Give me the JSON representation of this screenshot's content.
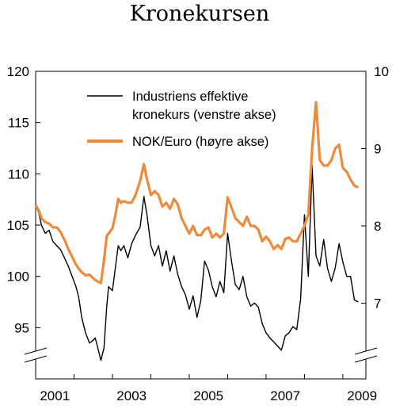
{
  "chart_data": {
    "type": "line",
    "title": "Kronekursen",
    "legend_position": "top-right",
    "grid": false,
    "x_range": [
      2001,
      2009.6
    ],
    "x_ticks": [
      "2001",
      "2003",
      "2005",
      "2007",
      "2009"
    ],
    "y_left": {
      "range": [
        90,
        120
      ],
      "ticks": [
        "95",
        "100",
        "105",
        "110",
        "115",
        "120"
      ],
      "axis_break": true
    },
    "y_right": {
      "range": [
        6.02,
        10
      ],
      "ticks": [
        "7",
        "8",
        "9",
        "10"
      ],
      "axis_break": true
    },
    "series": [
      {
        "name": "Industriens effektive",
        "name_line2": "kronekurs (venstre akse)",
        "axis": "left",
        "color": "#000000",
        "x": [
          2001.0,
          2001.08,
          2001.15,
          2001.25,
          2001.35,
          2001.45,
          2001.55,
          2001.65,
          2001.75,
          2001.85,
          2001.95,
          2002.05,
          2002.12,
          2002.2,
          2002.3,
          2002.4,
          2002.48,
          2002.55,
          2002.62,
          2002.7,
          2002.78,
          2002.85,
          2002.9,
          2003.0,
          2003.08,
          2003.15,
          2003.22,
          2003.3,
          2003.4,
          2003.5,
          2003.6,
          2003.72,
          2003.82,
          2003.9,
          2004.0,
          2004.1,
          2004.2,
          2004.3,
          2004.4,
          2004.5,
          2004.6,
          2004.7,
          2004.8,
          2004.9,
          2005.0,
          2005.1,
          2005.2,
          2005.3,
          2005.4,
          2005.5,
          2005.6,
          2005.7,
          2005.8,
          2005.9,
          2006.0,
          2006.1,
          2006.2,
          2006.3,
          2006.4,
          2006.5,
          2006.6,
          2006.7,
          2006.8,
          2006.9,
          2007.0,
          2007.1,
          2007.2,
          2007.3,
          2007.4,
          2007.5,
          2007.6,
          2007.7,
          2007.8,
          2007.9,
          2008.0,
          2008.1,
          2008.2,
          2008.3,
          2008.4,
          2008.5,
          2008.6,
          2008.7,
          2008.8,
          2008.9,
          2009.0,
          2009.1,
          2009.2,
          2009.3,
          2009.4
        ],
        "y": [
          107,
          106.2,
          105,
          104.2,
          104.5,
          103.4,
          103,
          102.6,
          101.8,
          101,
          100,
          99,
          98,
          96,
          94.5,
          93.5,
          93.7,
          94,
          93,
          91.8,
          93,
          97,
          99,
          98.6,
          101,
          103,
          102.5,
          103,
          101.8,
          103.2,
          104,
          104.8,
          107.8,
          106,
          103,
          102,
          103,
          101,
          102.5,
          100.5,
          102,
          100.2,
          99,
          98.2,
          96.8,
          98.1,
          96,
          97.6,
          101.5,
          100.6,
          99,
          98,
          99.5,
          98.4,
          104.2,
          101.5,
          99.2,
          98.7,
          100,
          98,
          97.1,
          97.4,
          97,
          95.4,
          94.5,
          94,
          93.6,
          93.2,
          92.8,
          94.2,
          94.5,
          95.1,
          94.8,
          97.8,
          106,
          100,
          110.8,
          102,
          101,
          103.6,
          100.8,
          99.5,
          100.8,
          103.2,
          101.4,
          100,
          100,
          97.7,
          97.5
        ]
      },
      {
        "name": "NOK/Euro (høyre akse)",
        "axis": "right",
        "color": "#ef8a3b",
        "x": [
          2001.0,
          2001.08,
          2001.15,
          2001.25,
          2001.35,
          2001.45,
          2001.55,
          2001.65,
          2001.75,
          2001.85,
          2001.95,
          2002.05,
          2002.12,
          2002.2,
          2002.3,
          2002.4,
          2002.48,
          2002.55,
          2002.62,
          2002.7,
          2002.78,
          2002.85,
          2002.9,
          2003.0,
          2003.08,
          2003.15,
          2003.22,
          2003.3,
          2003.4,
          2003.5,
          2003.6,
          2003.72,
          2003.82,
          2003.9,
          2004.0,
          2004.1,
          2004.2,
          2004.3,
          2004.4,
          2004.5,
          2004.6,
          2004.7,
          2004.8,
          2004.9,
          2005.0,
          2005.1,
          2005.2,
          2005.3,
          2005.4,
          2005.5,
          2005.6,
          2005.7,
          2005.8,
          2005.9,
          2006.0,
          2006.1,
          2006.2,
          2006.3,
          2006.4,
          2006.5,
          2006.6,
          2006.7,
          2006.8,
          2006.9,
          2007.0,
          2007.1,
          2007.2,
          2007.3,
          2007.4,
          2007.5,
          2007.6,
          2007.7,
          2007.8,
          2007.9,
          2008.0,
          2008.1,
          2008.2,
          2008.3,
          2008.4,
          2008.5,
          2008.6,
          2008.7,
          2008.8,
          2008.9,
          2009.0,
          2009.1,
          2009.2,
          2009.3,
          2009.4
        ],
        "y": [
          8.27,
          8.2,
          8.1,
          8.05,
          8.03,
          7.98,
          7.98,
          7.92,
          7.82,
          7.7,
          7.6,
          7.5,
          7.45,
          7.4,
          7.36,
          7.37,
          7.33,
          7.3,
          7.28,
          7.26,
          7.55,
          7.87,
          7.9,
          7.97,
          8.15,
          8.35,
          8.3,
          8.32,
          8.3,
          8.3,
          8.4,
          8.58,
          8.8,
          8.6,
          8.4,
          8.45,
          8.4,
          8.25,
          8.3,
          8.22,
          8.35,
          8.28,
          8.1,
          8.0,
          7.9,
          8.0,
          7.88,
          7.88,
          7.95,
          7.98,
          7.85,
          7.9,
          7.85,
          7.9,
          8.37,
          8.24,
          8.1,
          8.05,
          8.0,
          8.12,
          8.0,
          8.0,
          7.95,
          7.8,
          7.86,
          7.8,
          7.7,
          7.75,
          7.7,
          7.83,
          7.85,
          7.8,
          7.8,
          7.9,
          8.0,
          8.15,
          9.0,
          9.6,
          8.85,
          8.78,
          8.78,
          8.85,
          9.0,
          9.05,
          8.75,
          8.7,
          8.6,
          8.52,
          8.5
        ]
      }
    ]
  }
}
